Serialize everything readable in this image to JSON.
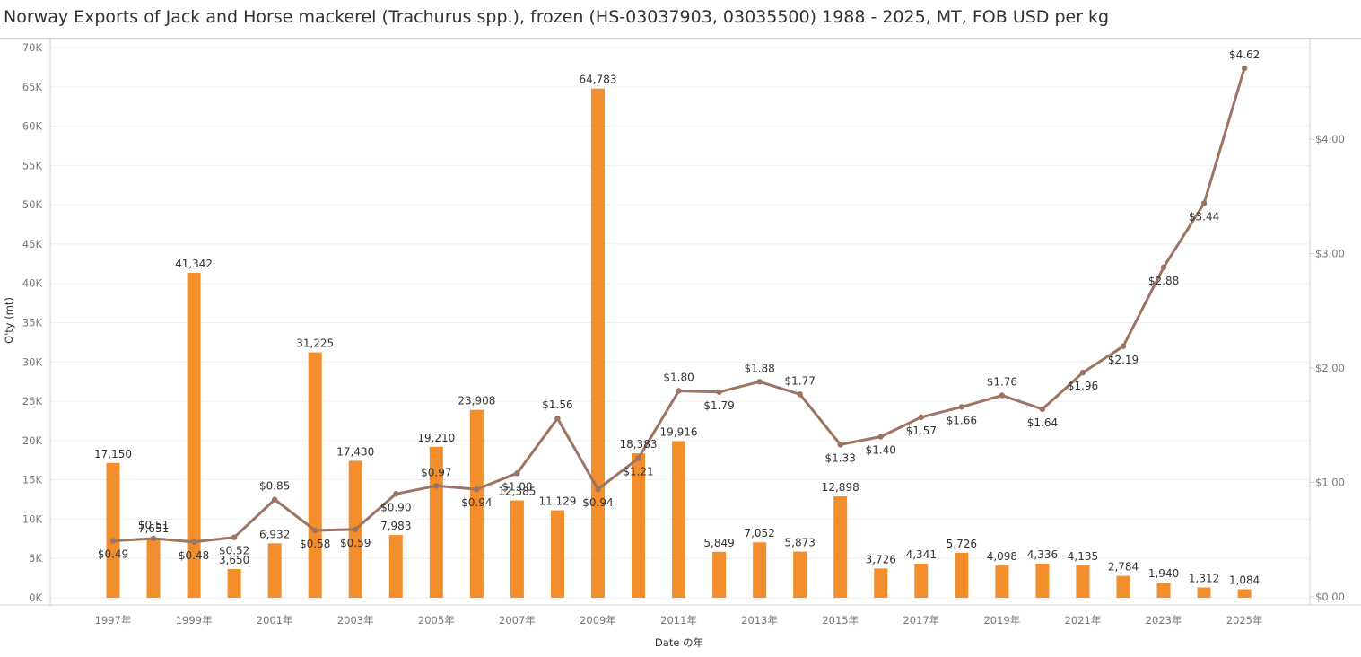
{
  "title": "Norway Exports of Jack and Horse mackerel (Trachurus spp.), frozen (HS-03037903, 03035500) 1988 - 2025, MT, FOB USD per kg",
  "chart_data": {
    "type": "bar",
    "title": "Norway Exports of Jack and Horse mackerel (Trachurus spp.), frozen (HS-03037903, 03035500) 1988 - 2025, MT, FOB USD per kg",
    "xlabel": "Date の年",
    "ylabel": "Q'ty (mt)",
    "y2label": "",
    "categories": [
      1997,
      1998,
      1999,
      2000,
      2001,
      2002,
      2003,
      2004,
      2005,
      2006,
      2007,
      2008,
      2009,
      2010,
      2011,
      2012,
      2013,
      2014,
      2015,
      2016,
      2017,
      2018,
      2019,
      2020,
      2021,
      2022,
      2023,
      2024,
      2025
    ],
    "x_tick_labels": [
      "1997年",
      "1999年",
      "2001年",
      "2003年",
      "2005年",
      "2007年",
      "2009年",
      "2011年",
      "2013年",
      "2015年",
      "2017年",
      "2019年",
      "2021年",
      "2023年",
      "2025年"
    ],
    "y_tick_labels": [
      "0K",
      "5K",
      "10K",
      "15K",
      "20K",
      "25K",
      "30K",
      "35K",
      "40K",
      "45K",
      "50K",
      "55K",
      "60K",
      "65K",
      "70K"
    ],
    "y2_tick_labels": [
      "$0.00",
      "$1.00",
      "$2.00",
      "$3.00",
      "$4.00"
    ],
    "ylim": [
      0,
      70000
    ],
    "y2lim": [
      0,
      4.72
    ],
    "grid": true,
    "series": [
      {
        "type": "bar",
        "color": "#f28e2b",
        "values": [
          17150,
          7651,
          41342,
          3650,
          6932,
          31225,
          17430,
          7983,
          19210,
          23908,
          12385,
          11129,
          64783,
          18383,
          19916,
          5849,
          7052,
          5873,
          12898,
          3726,
          4341,
          5726,
          4098,
          4336,
          4135,
          2784,
          1940,
          1312,
          1084
        ],
        "labels": [
          "17,150",
          "7,651",
          "41,342",
          "3,650",
          "6,932",
          "31,225",
          "17,430",
          "7,983",
          "19,210",
          "23,908",
          "12,385",
          "11,129",
          "64,783",
          "18,383",
          "19,916",
          "5,849",
          "7,052",
          "5,873",
          "12,898",
          "3,726",
          "4,341",
          "5,726",
          "4,098",
          "4,336",
          "4,135",
          "2,784",
          "1,940",
          "1,312",
          "1,084"
        ]
      },
      {
        "type": "line",
        "axis": "right",
        "color": "#9c7461",
        "values": [
          0.49,
          0.51,
          0.48,
          0.52,
          0.85,
          0.58,
          0.59,
          0.9,
          0.97,
          0.94,
          1.08,
          1.56,
          0.94,
          1.21,
          1.8,
          1.79,
          1.88,
          1.77,
          1.33,
          1.4,
          1.57,
          1.66,
          1.76,
          1.64,
          1.96,
          2.19,
          2.88,
          3.44,
          4.62
        ],
        "labels": [
          "$0.49",
          "$0.51",
          "$0.48",
          "$0.52",
          "$0.85",
          "$0.58",
          "$0.59",
          "$0.90",
          "$0.97",
          "$0.94",
          "$1.08",
          "$1.56",
          "$0.94",
          "$1.21",
          "$1.80",
          "$1.79",
          "$1.88",
          "$1.77",
          "$1.33",
          "$1.40",
          "$1.57",
          "$1.66",
          "$1.76",
          "$1.64",
          "$1.96",
          "$2.19",
          "$2.88",
          "$3.44",
          "$4.62"
        ]
      }
    ]
  }
}
